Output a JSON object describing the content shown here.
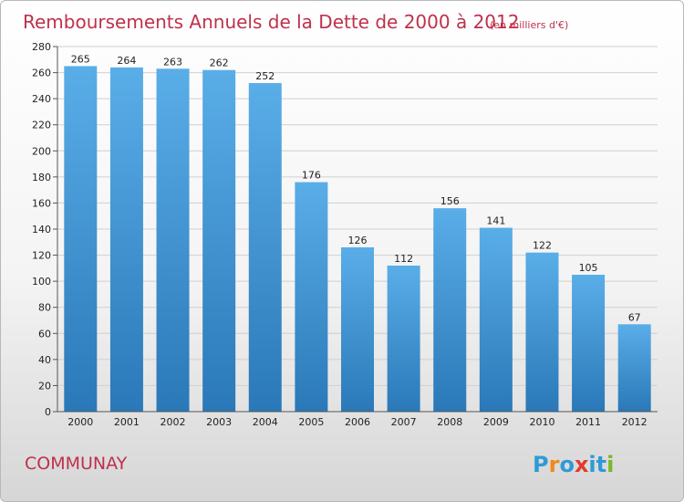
{
  "chart_data": {
    "type": "bar",
    "title": "Remboursements Annuels de la Dette de 2000 à 2012",
    "subtitle": "(en milliers d'€)",
    "categories": [
      "2000",
      "2001",
      "2002",
      "2003",
      "2004",
      "2005",
      "2006",
      "2007",
      "2008",
      "2009",
      "2010",
      "2011",
      "2012"
    ],
    "values": [
      265,
      264,
      263,
      262,
      252,
      176,
      126,
      112,
      156,
      141,
      122,
      105,
      67
    ],
    "xlabel": "",
    "ylabel": "",
    "ylim": [
      0,
      280
    ],
    "yticks": [
      0,
      20,
      40,
      60,
      80,
      100,
      120,
      140,
      160,
      180,
      200,
      220,
      240,
      260,
      280
    ],
    "grid": "horizontal",
    "bar_color_top": "#5aaee8",
    "bar_color_bottom": "#2a78b8"
  },
  "footer": {
    "commune": "COMMUNAY",
    "brand": [
      "P",
      "r",
      "o",
      "x",
      "i",
      "t",
      "i"
    ],
    "brand_colors": [
      "#2e9bd6",
      "#f08a1c",
      "#2e9bd6",
      "#e23a2c",
      "#2e9bd6",
      "#2e9bd6",
      "#7ab82a"
    ]
  },
  "colors": {
    "accent": "#c0304b",
    "grid": "#d0d0d0"
  }
}
